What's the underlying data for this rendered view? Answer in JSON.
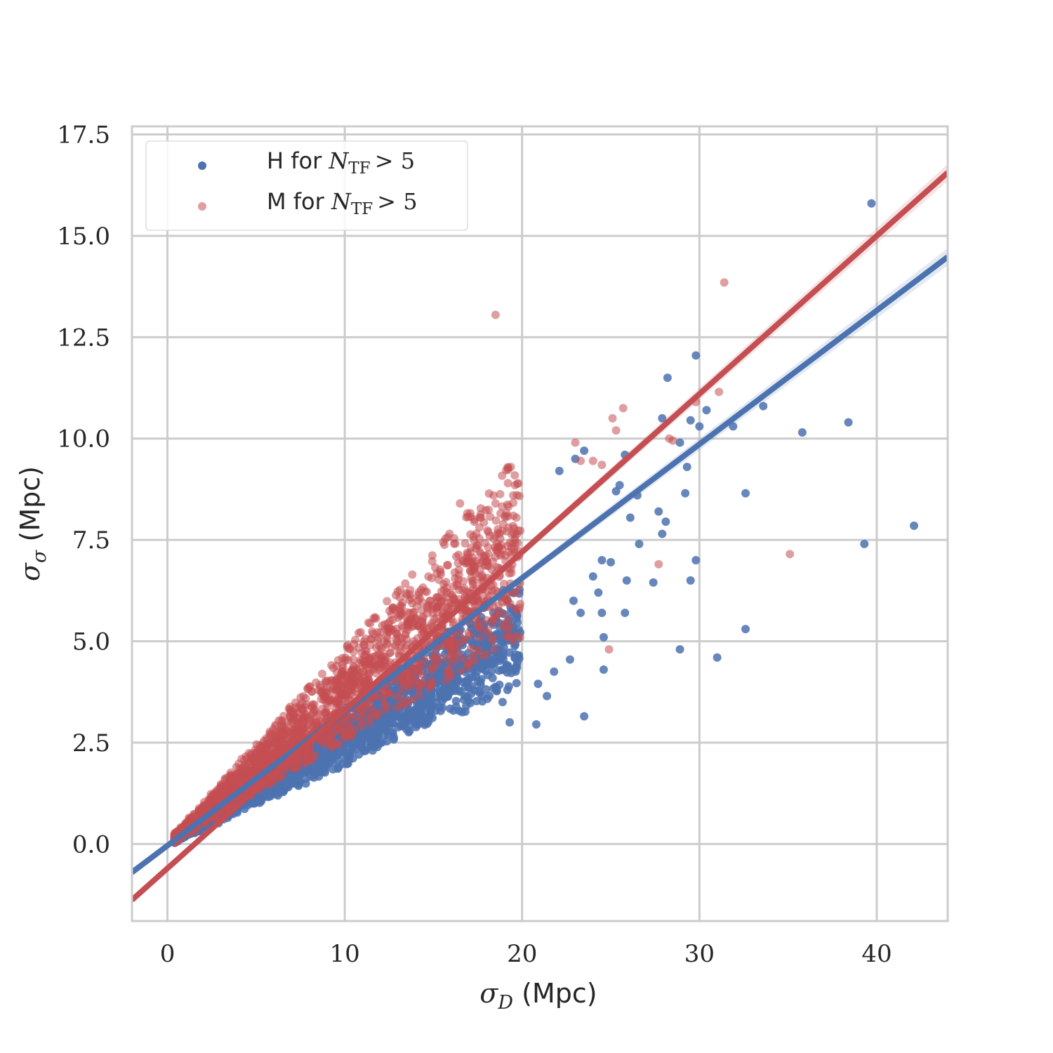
{
  "chart_data": {
    "type": "scatter",
    "xlabel_symbol": "σ",
    "xlabel_sub": "D",
    "xlabel_unit": "(Mpc)",
    "ylabel_symbol": "σ",
    "ylabel_sub": "σ",
    "ylabel_unit": "(Mpc)",
    "xlim": [
      -2,
      44
    ],
    "ylim": [
      -1.9,
      17.7
    ],
    "x_ticks": [
      0,
      10,
      20,
      30,
      40
    ],
    "x_tick_labels": [
      "0",
      "10",
      "20",
      "30",
      "40"
    ],
    "y_ticks": [
      0,
      2.5,
      5,
      7.5,
      10,
      12.5,
      15,
      17.5
    ],
    "y_tick_labels": [
      "0.0",
      "2.5",
      "5.0",
      "7.5",
      "10.0",
      "12.5",
      "15.0",
      "17.5"
    ],
    "grid": true,
    "legend_position": "top-left",
    "series": [
      {
        "name": "H for N_TF > 5",
        "legend_prefix": "H for",
        "color": "#4c72b0",
        "fit": {
          "slope": 0.33,
          "intercept": -0.04
        },
        "bulk_slope_range": [
          0.2,
          0.33
        ],
        "outliers": [
          [
            39.7,
            15.8
          ],
          [
            29.8,
            12.05
          ],
          [
            28.2,
            11.5
          ],
          [
            33.6,
            10.8
          ],
          [
            30.4,
            10.7
          ],
          [
            27.9,
            10.5
          ],
          [
            29.5,
            10.45
          ],
          [
            30.0,
            10.3
          ],
          [
            31.9,
            10.3
          ],
          [
            35.8,
            10.15
          ],
          [
            38.4,
            10.4
          ],
          [
            28.9,
            9.9
          ],
          [
            29.3,
            9.3
          ],
          [
            23.5,
            9.7
          ],
          [
            23.0,
            9.5
          ],
          [
            22.1,
            9.2
          ],
          [
            25.8,
            9.6
          ],
          [
            25.5,
            8.85
          ],
          [
            29.2,
            8.65
          ],
          [
            32.6,
            8.65
          ],
          [
            25.3,
            8.7
          ],
          [
            26.5,
            8.6
          ],
          [
            27.7,
            8.2
          ],
          [
            28.1,
            7.95
          ],
          [
            27.9,
            7.65
          ],
          [
            26.1,
            8.05
          ],
          [
            42.1,
            7.85
          ],
          [
            39.3,
            7.4
          ],
          [
            26.6,
            7.4
          ],
          [
            24.5,
            7.0
          ],
          [
            24.0,
            6.6
          ],
          [
            25.0,
            6.95
          ],
          [
            25.9,
            6.5
          ],
          [
            27.4,
            6.45
          ],
          [
            29.5,
            6.5
          ],
          [
            29.8,
            7.0
          ],
          [
            22.9,
            6.0
          ],
          [
            24.3,
            6.2
          ],
          [
            24.5,
            5.7
          ],
          [
            25.8,
            5.7
          ],
          [
            23.3,
            5.7
          ],
          [
            24.6,
            5.1
          ],
          [
            28.9,
            4.8
          ],
          [
            31.0,
            4.6
          ],
          [
            32.6,
            5.3
          ],
          [
            23.5,
            3.15
          ],
          [
            20.8,
            2.95
          ],
          [
            19.3,
            3.0
          ],
          [
            24.6,
            4.3
          ],
          [
            21.8,
            4.25
          ],
          [
            22.7,
            4.55
          ],
          [
            20.9,
            3.95
          ],
          [
            21.4,
            3.65
          ],
          [
            18.9,
            3.5
          ]
        ]
      },
      {
        "name": "M for N_TF > 5",
        "legend_prefix": "M for",
        "color": "#c44e52",
        "fit": {
          "slope": 0.39,
          "intercept": -0.6
        },
        "bulk_slope_range": [
          0.26,
          0.48
        ],
        "outliers": [
          [
            31.4,
            13.85
          ],
          [
            18.5,
            13.05
          ],
          [
            29.8,
            10.9
          ],
          [
            31.1,
            11.15
          ],
          [
            25.7,
            10.75
          ],
          [
            25.1,
            10.5
          ],
          [
            28.3,
            10.0
          ],
          [
            28.5,
            9.95
          ],
          [
            23.0,
            9.9
          ],
          [
            25.3,
            10.2
          ],
          [
            24.0,
            9.45
          ],
          [
            24.5,
            9.35
          ],
          [
            17.3,
            7.95
          ],
          [
            19.6,
            8.85
          ],
          [
            19.5,
            8.6
          ],
          [
            16.5,
            8.4
          ],
          [
            18.5,
            8.4
          ],
          [
            19.2,
            8.9
          ],
          [
            35.1,
            7.15
          ],
          [
            24.9,
            4.8
          ],
          [
            27.7,
            6.9
          ],
          [
            23.3,
            9.45
          ]
        ]
      }
    ]
  },
  "legend": {
    "math_symbol": "N",
    "math_sub": "TF",
    "math_rel": "> 5"
  }
}
